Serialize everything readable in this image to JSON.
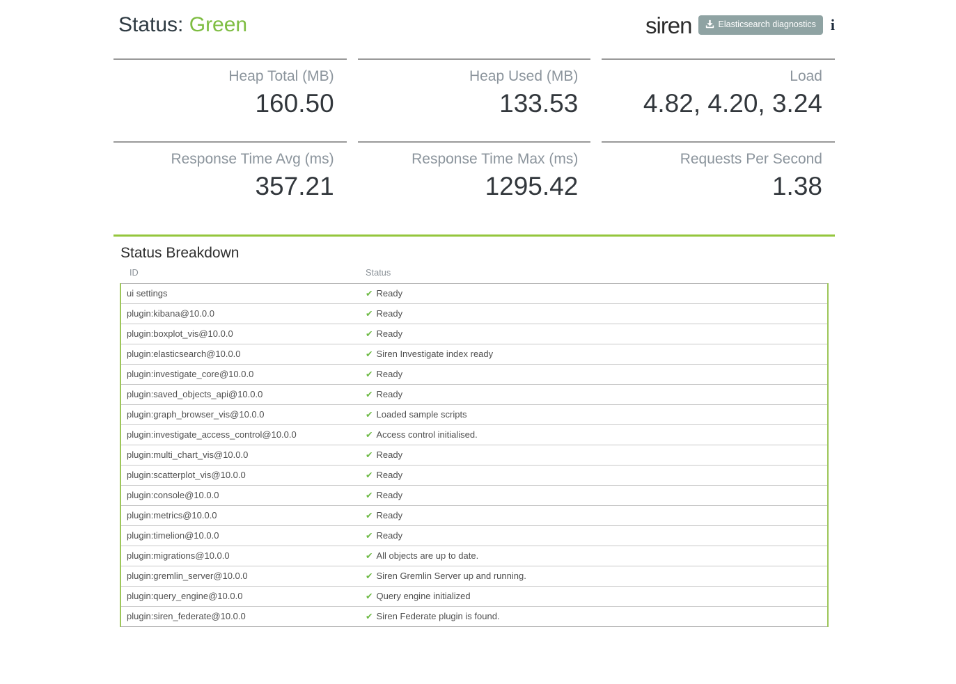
{
  "header": {
    "status_label": "Status:",
    "status_value": "Green",
    "logo_text": "siren",
    "diagnostics_button_label": "Elasticsearch diagnostics",
    "info_icon_glyph": "i"
  },
  "metrics": [
    {
      "label": "Heap Total (MB)",
      "value": "160.50"
    },
    {
      "label": "Heap Used (MB)",
      "value": "133.53"
    },
    {
      "label": "Load",
      "value": "4.82, 4.20, 3.24"
    },
    {
      "label": "Response Time Avg (ms)",
      "value": "357.21"
    },
    {
      "label": "Response Time Max (ms)",
      "value": "1295.42"
    },
    {
      "label": "Requests Per Second",
      "value": "1.38"
    }
  ],
  "breakdown": {
    "title": "Status Breakdown",
    "columns": [
      "ID",
      "Status"
    ],
    "check_icon": "✔",
    "rows": [
      {
        "id": "ui settings",
        "status": "Ready"
      },
      {
        "id": "plugin:kibana@10.0.0",
        "status": "Ready"
      },
      {
        "id": "plugin:boxplot_vis@10.0.0",
        "status": "Ready"
      },
      {
        "id": "plugin:elasticsearch@10.0.0",
        "status": "Siren Investigate index ready"
      },
      {
        "id": "plugin:investigate_core@10.0.0",
        "status": "Ready"
      },
      {
        "id": "plugin:saved_objects_api@10.0.0",
        "status": "Ready"
      },
      {
        "id": "plugin:graph_browser_vis@10.0.0",
        "status": "Loaded sample scripts"
      },
      {
        "id": "plugin:investigate_access_control@10.0.0",
        "status": "Access control initialised."
      },
      {
        "id": "plugin:multi_chart_vis@10.0.0",
        "status": "Ready"
      },
      {
        "id": "plugin:scatterplot_vis@10.0.0",
        "status": "Ready"
      },
      {
        "id": "plugin:console@10.0.0",
        "status": "Ready"
      },
      {
        "id": "plugin:metrics@10.0.0",
        "status": "Ready"
      },
      {
        "id": "plugin:timelion@10.0.0",
        "status": "Ready"
      },
      {
        "id": "plugin:migrations@10.0.0",
        "status": "All objects are up to date."
      },
      {
        "id": "plugin:gremlin_server@10.0.0",
        "status": "Siren Gremlin Server up and running."
      },
      {
        "id": "plugin:query_engine@10.0.0",
        "status": "Query engine initialized"
      },
      {
        "id": "plugin:siren_federate@10.0.0",
        "status": "Siren Federate plugin is found."
      }
    ]
  },
  "colors": {
    "status_green_text": "#7ebd42",
    "divider_green": "#94c63d",
    "table_border_green": "#9dc65a",
    "check_green": "#6db944",
    "button_gray": "#8fa3a3",
    "metric_border_gray": "#999999",
    "label_gray": "#8b949c",
    "value_dark": "#32373c"
  }
}
